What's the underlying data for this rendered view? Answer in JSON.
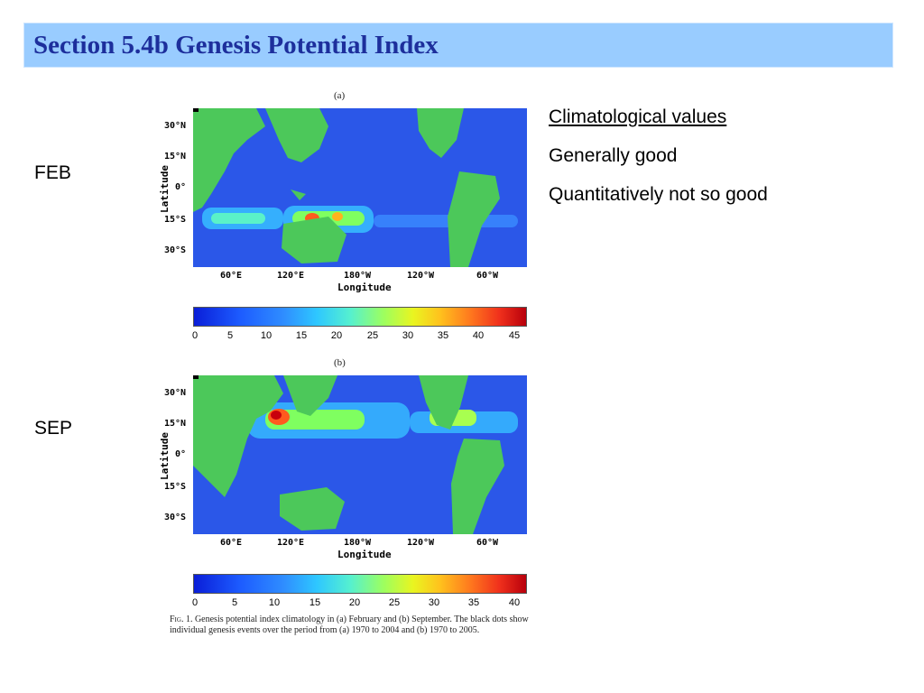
{
  "slide": {
    "title": "Section 5.4b Genesis Potential Index",
    "labels": {
      "feb": "FEB",
      "sep": "SEP"
    },
    "bullets": [
      "Climatological values",
      "Generally good",
      "Quantitatively not so good"
    ]
  },
  "figure": {
    "panels": [
      {
        "letter": "(a)",
        "lat_title": "Latitude",
        "lat_ticks": [
          "30°N",
          "15°N",
          "0°",
          "15°S",
          "30°S"
        ],
        "lon_title": "Longitude",
        "lon_ticks": [
          "60°E",
          "120°E",
          "180°W",
          "120°W",
          "60°W"
        ],
        "colorbar_ticks": [
          "0",
          "5",
          "10",
          "15",
          "20",
          "25",
          "30",
          "35",
          "40",
          "45"
        ]
      },
      {
        "letter": "(b)",
        "lat_title": "Latitude",
        "lat_ticks": [
          "30°N",
          "15°N",
          "0°",
          "15°S",
          "30°S"
        ],
        "lon_title": "Longitude",
        "lon_ticks": [
          "60°E",
          "120°E",
          "180°W",
          "120°W",
          "60°W"
        ],
        "colorbar_ticks": [
          "0",
          "5",
          "10",
          "15",
          "20",
          "25",
          "30",
          "35",
          "40"
        ]
      }
    ],
    "caption_fig": "Fig. 1.",
    "caption_text": "Genesis potential index climatology in (a) February and (b) September. The black dots show individual genesis events over the period from (a) 1970 to 2004 and (b) 1970 to 2005."
  },
  "colors": {
    "title_bar": "#99ccff",
    "title_text": "#1d2f9c",
    "land": "#4cc85a",
    "ocean": "#2b57e8"
  }
}
